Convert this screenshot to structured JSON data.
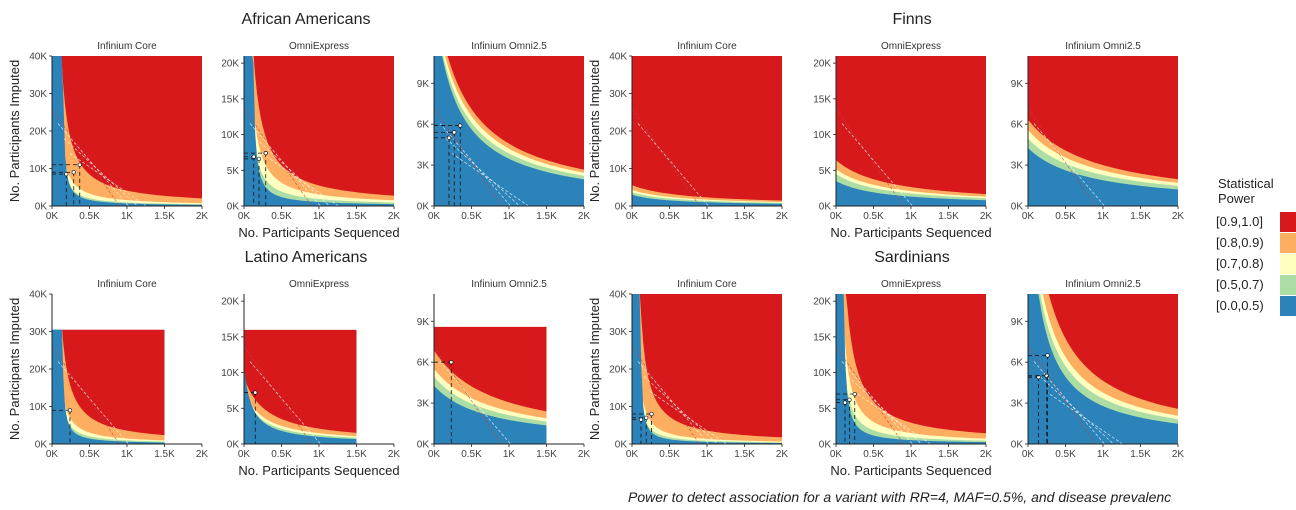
{
  "caption": "Power to detect association for a variant with RR=4, MAF=0.5%, and disease prevalenc",
  "legend": {
    "title_line1": "Statistical",
    "title_line2": "Power",
    "items": [
      {
        "label": "[0.9,1.0]",
        "color": "#d7191c"
      },
      {
        "label": "[0.8,0.9)",
        "color": "#fdae61"
      },
      {
        "label": "[0.7,0.8)",
        "color": "#ffffbf"
      },
      {
        "label": "[0.5,0.7)",
        "color": "#abdda4"
      },
      {
        "label": "[0.0,0.5)",
        "color": "#2b83ba"
      }
    ]
  },
  "chart_data": [
    {
      "type": "heatmap",
      "title": "African Americans",
      "ylabel": "No. Participants Imputed",
      "xlabel": "No. Participants Sequenced",
      "panels": [
        {
          "title": "Infinium Core",
          "xlim": [
            0,
            2000
          ],
          "ylim": [
            0,
            40000
          ],
          "xticks": [
            0,
            500,
            1000,
            1500,
            2000
          ],
          "xtick_labels": [
            "0K",
            "0.5K",
            "1K",
            "1.5K",
            "2K"
          ],
          "yticks": [
            0,
            10000,
            20000,
            30000,
            40000
          ],
          "ytick_labels": [
            "0K",
            "10K",
            "20K",
            "30K",
            "40K"
          ],
          "x_max_data": 2000,
          "y_max_data": 40000,
          "boundaries": {
            "p50": [
              130,
              600000
            ],
            "p70": [
              65,
              900000
            ],
            "p80": [
              45,
              1500000
            ],
            "p90": [
              25,
              4000000
            ]
          },
          "points": [
            {
              "x": 190,
              "y": 8500
            },
            {
              "x": 290,
              "y": 9000
            },
            {
              "x": 370,
              "y": 11000
            }
          ]
        },
        {
          "title": "OmniExpress",
          "xlim": [
            0,
            2000
          ],
          "ylim": [
            0,
            21000
          ],
          "xticks": [
            0,
            500,
            1000,
            1500,
            2000
          ],
          "xtick_labels": [
            "0K",
            "0.5K",
            "1K",
            "1.5K",
            "2K"
          ],
          "yticks": [
            0,
            5000,
            10000,
            15000,
            20000
          ],
          "ytick_labels": [
            "0K",
            "5K",
            "10K",
            "15K",
            "20K"
          ],
          "x_max_data": 2000,
          "y_max_data": 21000,
          "boundaries": {
            "p50": [
              100,
              500000
            ],
            "p70": [
              30,
              950000
            ],
            "p80": [
              10,
              1600000
            ],
            "p90": [
              -10,
              2900000
            ]
          },
          "points": [
            {
              "x": 130,
              "y": 6900
            },
            {
              "x": 200,
              "y": 6600
            },
            {
              "x": 290,
              "y": 7400
            }
          ]
        },
        {
          "title": "Infinium Omni2.5",
          "xlim": [
            0,
            2000
          ],
          "ylim": [
            0,
            11000
          ],
          "xticks": [
            0,
            500,
            1000,
            1500,
            2000
          ],
          "xtick_labels": [
            "0K",
            "0.5K",
            "1K",
            "1.5K",
            "2K"
          ],
          "yticks": [
            0,
            3000,
            6000,
            9000
          ],
          "ytick_labels": [
            "0K",
            "3K",
            "6K",
            "9K"
          ],
          "x_max_data": 2000,
          "y_max_data": 11000,
          "boundaries": {
            "p50": [
              -300,
              4500000
            ],
            "p70": [
              -350,
              5200000
            ],
            "p80": [
              -380,
              5800000
            ],
            "p90": [
              -400,
              6400000
            ]
          },
          "points": [
            {
              "x": 200,
              "y": 5000
            },
            {
              "x": 270,
              "y": 5400
            },
            {
              "x": 350,
              "y": 5900
            }
          ]
        }
      ]
    },
    {
      "type": "heatmap",
      "title": "Finns",
      "ylabel": "No. Participants Imputed",
      "xlabel": "No. Participants Sequenced",
      "panels": [
        {
          "title": "Infinium Core",
          "xlim": [
            0,
            2000
          ],
          "ylim": [
            0,
            40000
          ],
          "xticks": [
            0,
            500,
            1000,
            1500,
            2000
          ],
          "xtick_labels": [
            "0K",
            "0.5K",
            "1K",
            "1.5K",
            "2K"
          ],
          "yticks": [
            0,
            10000,
            20000,
            30000,
            40000
          ],
          "ytick_labels": [
            "0K",
            "10K",
            "20K",
            "30K",
            "40K"
          ],
          "x_max_data": 2000,
          "y_max_data": 40000,
          "boundaries": {
            "p50": [
              -500,
              1500000
            ],
            "p70": [
              -600,
              2200000
            ],
            "p80": [
              -650,
              2800000
            ],
            "p90": [
              -700,
              3900000
            ]
          },
          "points": []
        },
        {
          "title": "OmniExpress",
          "xlim": [
            0,
            2000
          ],
          "ylim": [
            0,
            21000
          ],
          "xticks": [
            0,
            500,
            1000,
            1500,
            2000
          ],
          "xtick_labels": [
            "0K",
            "0.5K",
            "1K",
            "1.5K",
            "2K"
          ],
          "yticks": [
            0,
            5000,
            10000,
            15000,
            20000
          ],
          "ytick_labels": [
            "0K",
            "5K",
            "10K",
            "15K",
            "20K"
          ],
          "x_max_data": 2000,
          "y_max_data": 21000,
          "boundaries": {
            "p50": [
              -600,
              2100000
            ],
            "p70": [
              -650,
              2900000
            ],
            "p80": [
              -680,
              3500000
            ],
            "p90": [
              -700,
              4500000
            ]
          },
          "points": []
        },
        {
          "title": "Infinium Omni2.5",
          "xlim": [
            0,
            2000
          ],
          "ylim": [
            0,
            11000
          ],
          "xticks": [
            0,
            500,
            1000,
            1500,
            2000
          ],
          "xtick_labels": [
            "0K",
            "0.5K",
            "1K",
            "1.5K",
            "2K"
          ],
          "yticks": [
            0,
            3000,
            6000,
            9000
          ],
          "ytick_labels": [
            "0K",
            "3K",
            "6K",
            "9K"
          ],
          "x_max_data": 2000,
          "y_max_data": 11000,
          "boundaries": {
            "p50": [
              -800,
              3400000
            ],
            "p70": [
              -850,
              4200000
            ],
            "p80": [
              -880,
              4900000
            ],
            "p90": [
              -900,
              5700000
            ]
          },
          "points": []
        }
      ]
    },
    {
      "type": "heatmap",
      "title": "Latino Americans",
      "ylabel": "No. Participants Imputed",
      "xlabel": "No. Participants Sequenced",
      "panels": [
        {
          "title": "Infinium Core",
          "xlim": [
            0,
            2000
          ],
          "ylim": [
            0,
            40000
          ],
          "xticks": [
            0,
            500,
            1000,
            1500,
            2000
          ],
          "xtick_labels": [
            "0K",
            "0.5K",
            "1K",
            "1.5K",
            "2K"
          ],
          "yticks": [
            0,
            10000,
            20000,
            30000,
            40000
          ],
          "ytick_labels": [
            "0K",
            "10K",
            "20K",
            "30K",
            "40K"
          ],
          "x_max_data": 1500,
          "y_max_data": 30500,
          "boundaries": {
            "p50": [
              120,
              550000
            ],
            "p70": [
              60,
              900000
            ],
            "p80": [
              40,
              1400000
            ],
            "p90": [
              20,
              3500000
            ]
          },
          "points": [
            {
              "x": 240,
              "y": 9000
            }
          ]
        },
        {
          "title": "OmniExpress",
          "xlim": [
            0,
            2000
          ],
          "ylim": [
            0,
            21000
          ],
          "xticks": [
            0,
            500,
            1000,
            1500,
            2000
          ],
          "xtick_labels": [
            "0K",
            "0.5K",
            "1K",
            "1.5K",
            "2K"
          ],
          "yticks": [
            0,
            5000,
            10000,
            15000,
            20000
          ],
          "ytick_labels": [
            "0K",
            "5K",
            "10K",
            "15K",
            "20K"
          ],
          "x_max_data": 1500,
          "y_max_data": 16000,
          "boundaries": {
            "p50": [
              -100,
              1100000
            ],
            "p70": [
              -200,
              1500000
            ],
            "p80": [
              -250,
              1900000
            ],
            "p90": [
              -300,
              2800000
            ]
          },
          "points": [
            {
              "x": 150,
              "y": 7200
            }
          ]
        },
        {
          "title": "Infinium Omni2.5",
          "xlim": [
            0,
            2000
          ],
          "ylim": [
            0,
            11000
          ],
          "xticks": [
            0,
            500,
            1000,
            1500,
            2000
          ],
          "xtick_labels": [
            "0K",
            "0.5K",
            "1K",
            "1.5K",
            "2K"
          ],
          "yticks": [
            0,
            3000,
            6000,
            9000
          ],
          "ytick_labels": [
            "0K",
            "3K",
            "6K",
            "9K"
          ],
          "x_max_data": 1500,
          "y_max_data": 8600,
          "boundaries": {
            "p50": [
              -700,
              3000000
            ],
            "p70": [
              -750,
              3700000
            ],
            "p80": [
              -780,
              4300000
            ],
            "p90": [
              -800,
              5500000
            ]
          },
          "points": [
            {
              "x": 230,
              "y": 6000
            }
          ]
        }
      ]
    },
    {
      "type": "heatmap",
      "title": "Sardinians",
      "ylabel": "No. Participants Imputed",
      "xlabel": "No. Participants Sequenced",
      "panels": [
        {
          "title": "Infinium Core",
          "xlim": [
            0,
            2000
          ],
          "ylim": [
            0,
            40000
          ],
          "xticks": [
            0,
            500,
            1000,
            1500,
            2000
          ],
          "xtick_labels": [
            "0K",
            "0.5K",
            "1K",
            "1.5K",
            "2K"
          ],
          "yticks": [
            0,
            10000,
            20000,
            30000,
            40000
          ],
          "ytick_labels": [
            "0K",
            "10K",
            "20K",
            "30K",
            "40K"
          ],
          "x_max_data": 2000,
          "y_max_data": 40000,
          "boundaries": {
            "p50": [
              100,
              500000
            ],
            "p70": [
              50,
              800000
            ],
            "p80": [
              35,
              1300000
            ],
            "p90": [
              20,
              3500000
            ]
          },
          "points": [
            {
              "x": 120,
              "y": 6500
            },
            {
              "x": 190,
              "y": 7000
            },
            {
              "x": 260,
              "y": 8000
            }
          ]
        },
        {
          "title": "OmniExpress",
          "xlim": [
            0,
            2000
          ],
          "ylim": [
            0,
            21000
          ],
          "xticks": [
            0,
            500,
            1000,
            1500,
            2000
          ],
          "xtick_labels": [
            "0K",
            "0.5K",
            "1K",
            "1.5K",
            "2K"
          ],
          "yticks": [
            0,
            5000,
            10000,
            15000,
            20000
          ],
          "ytick_labels": [
            "0K",
            "5K",
            "10K",
            "15K",
            "20K"
          ],
          "x_max_data": 2000,
          "y_max_data": 21000,
          "boundaries": {
            "p50": [
              80,
              500000
            ],
            "p70": [
              30,
              900000
            ],
            "p80": [
              15,
              1500000
            ],
            "p90": [
              -5,
              3000000
            ]
          },
          "points": [
            {
              "x": 120,
              "y": 5800
            },
            {
              "x": 180,
              "y": 6200
            },
            {
              "x": 250,
              "y": 7000
            }
          ]
        },
        {
          "title": "Infinium Omni2.5",
          "xlim": [
            0,
            2000
          ],
          "ylim": [
            0,
            11000
          ],
          "xticks": [
            0,
            500,
            1000,
            1500,
            2000
          ],
          "xtick_labels": [
            "0K",
            "0.5K",
            "1K",
            "1.5K",
            "2K"
          ],
          "yticks": [
            0,
            3000,
            6000,
            9000
          ],
          "ytick_labels": [
            "0K",
            "3K",
            "6K",
            "9K"
          ],
          "x_max_data": 2000,
          "y_max_data": 11000,
          "boundaries": {
            "p50": [
              -150,
              3200000
            ],
            "p70": [
              -200,
              4000000
            ],
            "p80": [
              -220,
              4600000
            ],
            "p90": [
              -250,
              5800000
            ]
          },
          "points": [
            {
              "x": 140,
              "y": 4900
            },
            {
              "x": 250,
              "y": 5000
            },
            {
              "x": 260,
              "y": 6500
            }
          ]
        }
      ]
    }
  ]
}
